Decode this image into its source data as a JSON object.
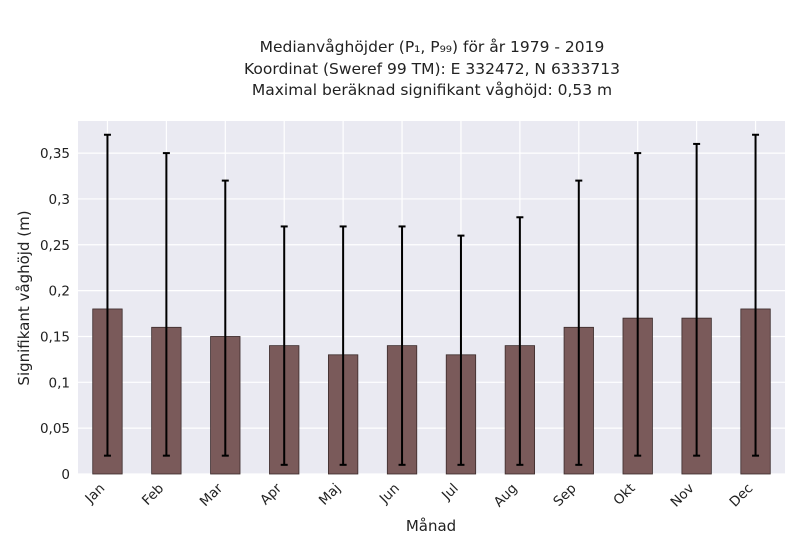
{
  "chart_data": {
    "type": "bar",
    "title_lines": [
      "Medianvåghöjder (P₁, P₉₉) för år 1979 - 2019",
      "Koordinat (Sweref 99 TM): E 332472, N 6333713",
      "Maximal beräknad signifikant våghöjd: 0,53 m"
    ],
    "xlabel": "Månad",
    "ylabel": "Signifikant våghöjd (m)",
    "categories": [
      "Jan",
      "Feb",
      "Mar",
      "Apr",
      "Maj",
      "Jun",
      "Jul",
      "Aug",
      "Sep",
      "Okt",
      "Nov",
      "Dec"
    ],
    "values": [
      0.18,
      0.16,
      0.15,
      0.14,
      0.13,
      0.14,
      0.13,
      0.14,
      0.16,
      0.17,
      0.17,
      0.18
    ],
    "error_low": [
      0.02,
      0.02,
      0.02,
      0.01,
      0.01,
      0.01,
      0.01,
      0.01,
      0.01,
      0.02,
      0.02,
      0.02
    ],
    "error_high": [
      0.37,
      0.35,
      0.32,
      0.27,
      0.27,
      0.27,
      0.26,
      0.28,
      0.32,
      0.35,
      0.36,
      0.37
    ],
    "ylim": [
      0,
      0.385
    ],
    "yticks": [
      0,
      0.05,
      0.1,
      0.15,
      0.2,
      0.25,
      0.3,
      0.35
    ],
    "ytick_labels": [
      "0",
      "0,05",
      "0,1",
      "0,15",
      "0,2",
      "0,25",
      "0,3",
      "0,35"
    ],
    "grid": true,
    "bar_color": "#7a5a5a",
    "bar_edge_color": "#3a2a2a",
    "error_color": "#000000",
    "background_color": "#eaeaf2"
  }
}
